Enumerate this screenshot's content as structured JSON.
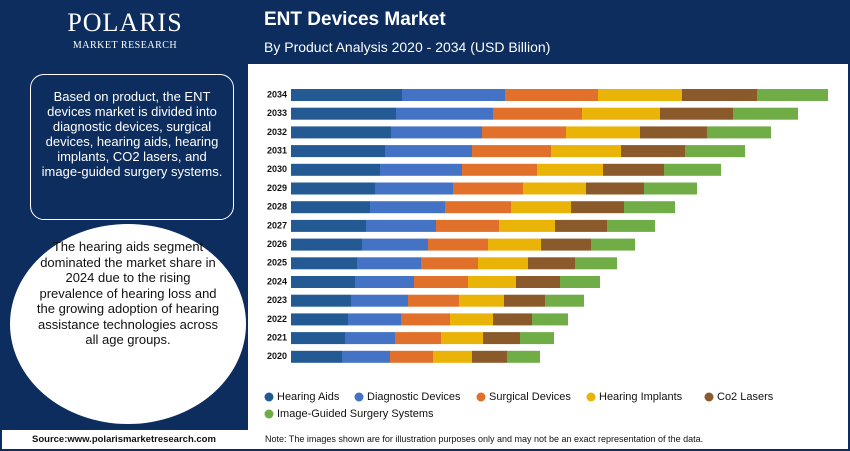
{
  "logo": {
    "name": "POLARIS",
    "tagline": "MARKET RESEARCH"
  },
  "panel": {
    "summary": "Based on product, the ENT devices market is divided into diagnostic devices, surgical devices, hearing aids, hearing implants, CO2 lasers, and image-guided surgery systems.",
    "highlight": "The hearing aids segment dominated the market share in 2024 due to the rising prevalence of hearing loss and the growing adoption of hearing assistance technologies across all age groups."
  },
  "source": "Source:www.polarismarketresearch.com",
  "note": "Note: The images shown are for illustration purposes only and may not be an exact representation of the data.",
  "chart_data": {
    "type": "stacked-bar-horizontal",
    "title": "ENT Devices Market",
    "subtitle": "By Product Analysis 2020 - 2034 (USD Billion)",
    "categories": [
      "2020",
      "2021",
      "2022",
      "2023",
      "2024",
      "2025",
      "2026",
      "2027",
      "2028",
      "2029",
      "2030",
      "2031",
      "2032",
      "2033",
      "2034"
    ],
    "series": [
      {
        "name": "Hearing Aids",
        "color": "#235a93",
        "values": [
          5.1,
          5.4,
          5.7,
          6.0,
          6.4,
          6.6,
          7.1,
          7.5,
          7.9,
          8.4,
          8.9,
          9.4,
          10.0,
          10.5,
          11.1
        ]
      },
      {
        "name": "Diagnostic Devices",
        "color": "#4472c4",
        "values": [
          4.8,
          5.0,
          5.3,
          5.7,
          5.9,
          6.4,
          6.6,
          7.0,
          7.5,
          7.8,
          8.2,
          8.7,
          9.1,
          9.7,
          10.3
        ]
      },
      {
        "name": "Surgical Devices",
        "color": "#e0702a",
        "values": [
          4.3,
          4.6,
          4.9,
          5.1,
          5.4,
          5.7,
          6.0,
          6.3,
          6.6,
          7.0,
          7.5,
          7.9,
          8.4,
          8.9,
          9.3
        ]
      },
      {
        "name": "Hearing Implants",
        "color": "#eab308",
        "values": [
          3.9,
          4.2,
          4.3,
          4.5,
          4.8,
          5.0,
          5.3,
          5.6,
          6.0,
          6.3,
          6.6,
          7.0,
          7.4,
          7.8,
          8.4
        ]
      },
      {
        "name": "Co2 Lasers",
        "color": "#8b5a2b",
        "values": [
          3.5,
          3.7,
          3.9,
          4.1,
          4.4,
          4.7,
          5.0,
          5.2,
          5.3,
          5.8,
          6.1,
          6.4,
          6.7,
          7.3,
          7.5
        ]
      },
      {
        "name": "Image-Guided Surgery Systems",
        "color": "#70ad47",
        "values": [
          3.3,
          3.4,
          3.6,
          3.9,
          4.0,
          4.2,
          4.4,
          4.8,
          5.1,
          5.3,
          5.7,
          6.0,
          6.4,
          6.5,
          7.1
        ]
      }
    ]
  }
}
